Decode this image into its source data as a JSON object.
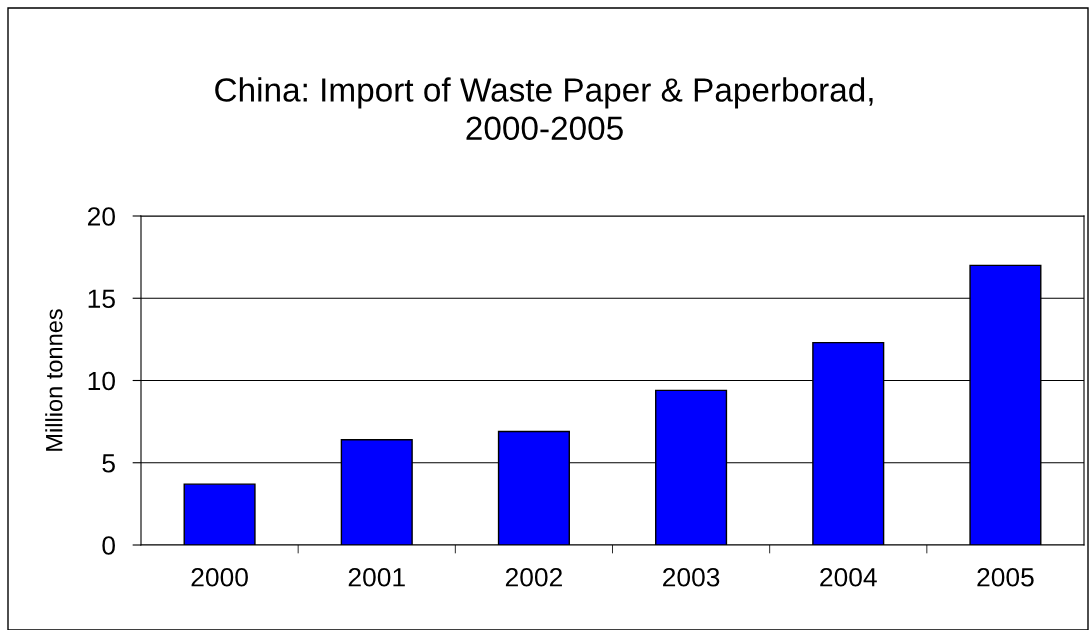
{
  "chart_data": {
    "type": "bar",
    "title": "China: Import of Waste Paper & Paperborad,\n2000-2005",
    "ylabel": "Million tonnes",
    "categories": [
      "2000",
      "2001",
      "2002",
      "2003",
      "2004",
      "2005"
    ],
    "values": [
      3.7,
      6.4,
      6.9,
      9.4,
      12.3,
      17.0
    ],
    "color": "#0000ff",
    "ylim": [
      0,
      20
    ],
    "yticks": [
      0,
      5,
      10,
      15,
      20
    ],
    "grid": "y"
  }
}
